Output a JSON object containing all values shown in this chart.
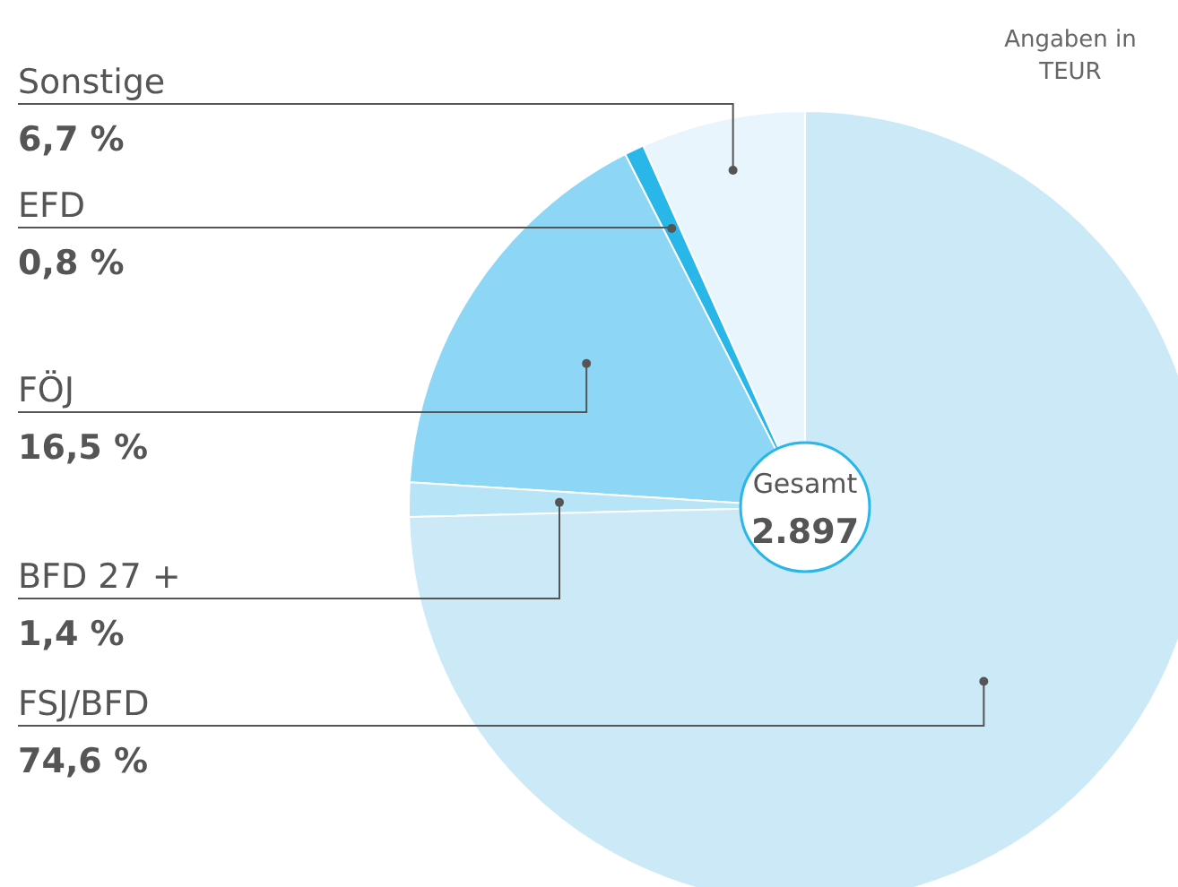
{
  "chart_data": {
    "type": "pie",
    "categories": [
      "Sonstige",
      "EFD",
      "FÖJ",
      "BFD 27 +",
      "FSJ/BFD"
    ],
    "values": [
      6.7,
      0.8,
      16.5,
      1.4,
      74.6
    ],
    "value_labels": [
      "6,7 %",
      "0,8 %",
      "16,5 %",
      "1,4 %",
      "74,6 %"
    ],
    "colors": [
      "#e8f5fc",
      "#29b6e8",
      "#8dd6f5",
      "#b8e4f7",
      "#cce9f8"
    ],
    "annotations": [
      "Angaben in TEUR",
      "Gesamt",
      "2.897"
    ],
    "legend": false
  }
}
